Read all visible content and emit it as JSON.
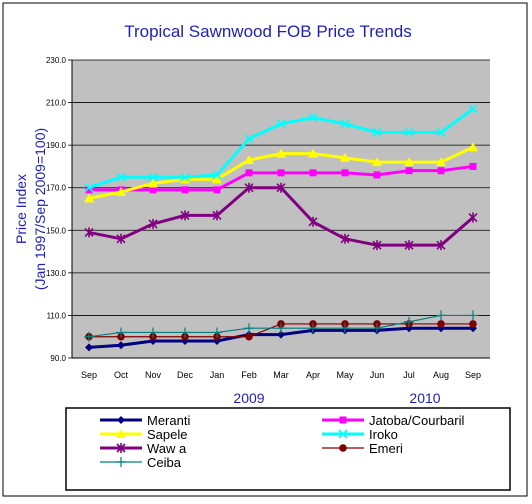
{
  "chart_data": {
    "type": "line",
    "title": "Tropical Sawnwood FOB Price Trends",
    "ylabel_line1": "Price Index",
    "ylabel_line2": "(Jan 1997/Sep 2009=100)",
    "xlabel": "",
    "categories": [
      "Sep",
      "Oct",
      "Nov",
      "Dec",
      "Jan",
      "Feb",
      "Mar",
      "Apr",
      "May",
      "Jun",
      "Jul",
      "Aug",
      "Sep"
    ],
    "year_labels": [
      {
        "text": "2009",
        "category_index": 5
      },
      {
        "text": "2010",
        "category_index": 10.5
      }
    ],
    "ylim": [
      90,
      230
    ],
    "yticks": [
      90,
      110,
      130,
      150,
      170,
      190,
      210,
      230
    ],
    "ytick_labels": [
      "90.0",
      "110.0",
      "130.0",
      "150.0",
      "170.0",
      "190.0",
      "210.0",
      "230.0"
    ],
    "grid": true,
    "legend_position": "bottom",
    "series": [
      {
        "name": "Meranti",
        "color": "#000080",
        "marker": "diamond",
        "values": [
          95,
          96,
          98,
          98,
          98,
          101,
          101,
          103,
          103,
          103,
          104,
          104,
          104
        ]
      },
      {
        "name": "Jatoba/Courbaril",
        "color": "#ff00ff",
        "marker": "square",
        "values": [
          169,
          169,
          169,
          169,
          169,
          177,
          177,
          177,
          177,
          176,
          178,
          178,
          180
        ]
      },
      {
        "name": "Sapele",
        "color": "#ffff00",
        "marker": "triangle",
        "values": [
          165,
          168,
          172,
          174,
          174,
          183,
          186,
          186,
          184,
          182,
          182,
          182,
          189
        ]
      },
      {
        "name": "Iroko",
        "color": "#00ffff",
        "marker": "x",
        "values": [
          170,
          175,
          175,
          175,
          176,
          193,
          200,
          203,
          200,
          196,
          196,
          196,
          207
        ]
      },
      {
        "name": "Waw a",
        "color": "#800080",
        "marker": "star",
        "values": [
          149,
          146,
          153,
          157,
          157,
          170,
          170,
          154,
          146,
          143,
          143,
          143,
          156
        ]
      },
      {
        "name": "Emeri",
        "color": "#800000",
        "marker": "circle",
        "values": [
          100,
          100,
          100,
          100,
          100,
          100,
          106,
          106,
          106,
          106,
          106,
          106,
          106
        ]
      },
      {
        "name": "Ceiba",
        "color": "#008080",
        "marker": "plus",
        "values": [
          100,
          102,
          102,
          102,
          102,
          104,
          104,
          104,
          104,
          104,
          107,
          110,
          110
        ]
      }
    ]
  }
}
